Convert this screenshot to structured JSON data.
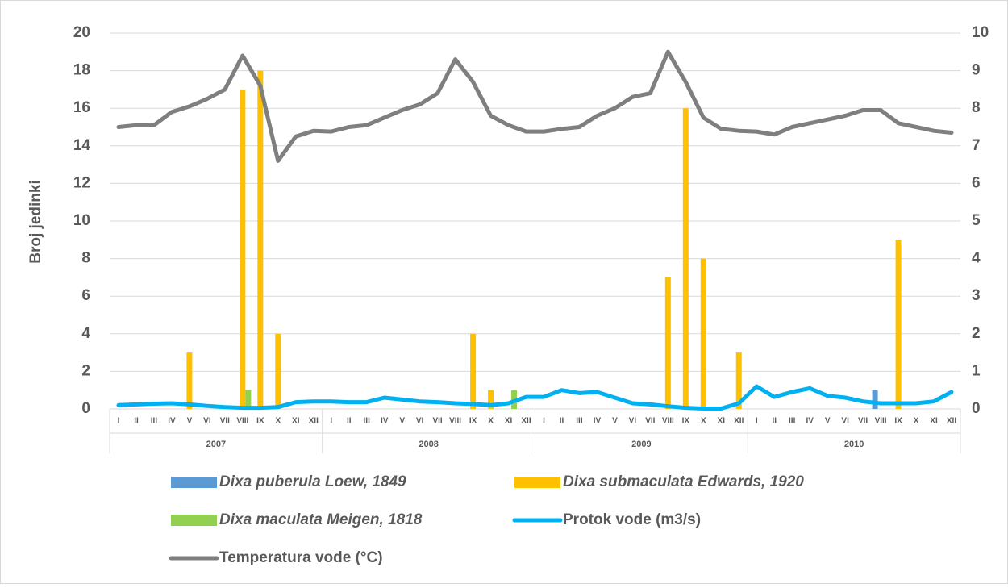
{
  "chart_data": {
    "type": "bar",
    "ylabel": "Broj jedinki",
    "categories": [
      "I",
      "II",
      "III",
      "IV",
      "V",
      "VI",
      "VII",
      "VIII",
      "IX",
      "X",
      "XI",
      "XII",
      "I",
      "II",
      "III",
      "IV",
      "V",
      "VI",
      "VII",
      "VIII",
      "IX",
      "X",
      "XI",
      "XII",
      "I",
      "II",
      "III",
      "IV",
      "V",
      "VI",
      "VII",
      "VIII",
      "IX",
      "X",
      "XI",
      "XII",
      "I",
      "II",
      "III",
      "IV",
      "V",
      "VI",
      "VII",
      "VIII",
      "IX",
      "X",
      "XI",
      "XII"
    ],
    "groups": [
      "2007",
      "2008",
      "2009",
      "2010"
    ],
    "ylim": [
      0,
      20
    ],
    "yticks": [
      0,
      2,
      4,
      6,
      8,
      10,
      12,
      14,
      16,
      18,
      20
    ],
    "y2lim": [
      0,
      10
    ],
    "y2ticks": [
      0,
      1,
      2,
      3,
      4,
      5,
      6,
      7,
      8,
      9,
      10
    ],
    "grid": true,
    "series": [
      {
        "name": "Dixa puberula Loew, 1849",
        "type": "bar",
        "color": "#5b9bd5",
        "italic": true,
        "values": [
          0,
          0,
          0,
          0,
          0,
          0,
          0,
          0,
          0,
          0,
          0,
          0,
          0,
          0,
          0,
          0,
          0,
          0,
          0,
          0,
          0,
          0,
          0,
          0,
          0,
          0,
          0,
          0,
          0,
          0,
          0,
          0,
          0,
          0,
          0,
          0,
          0,
          0,
          0,
          0,
          0,
          0,
          0,
          1,
          0,
          0,
          0,
          0
        ]
      },
      {
        "name": "Dixa submaculata Edwards, 1920",
        "type": "bar",
        "color": "#ffc000",
        "italic": true,
        "values": [
          0,
          0,
          0,
          0,
          3,
          0,
          0,
          17,
          18,
          4,
          0,
          0,
          0,
          0,
          0,
          0,
          0,
          0,
          0,
          0,
          4,
          1,
          0,
          0,
          0,
          0,
          0,
          0,
          0,
          0,
          0,
          7,
          16,
          8,
          0,
          3,
          0,
          0,
          0,
          0,
          0,
          0,
          0,
          0,
          9,
          0,
          0,
          0
        ]
      },
      {
        "name": "Dixa maculata Meigen, 1818",
        "type": "bar",
        "color": "#92d050",
        "italic": true,
        "values": [
          0,
          0,
          0,
          0,
          0,
          0,
          0,
          1,
          0,
          0,
          0,
          0,
          0,
          0,
          0,
          0,
          0,
          0,
          0,
          0,
          0,
          0,
          1,
          0,
          0,
          0,
          0,
          0,
          0,
          0,
          0,
          0,
          0,
          0,
          0,
          0,
          0,
          0,
          0,
          0,
          0,
          0,
          0,
          0,
          0,
          0,
          0,
          0
        ]
      },
      {
        "name": "Protok vode (m3/s)",
        "type": "line",
        "axis": "y2",
        "color": "#00b0f0",
        "italic": false,
        "values": [
          0.1,
          0.12,
          0.14,
          0.15,
          0.12,
          0.08,
          0.05,
          0.03,
          0.03,
          0.05,
          0.18,
          0.2,
          0.2,
          0.18,
          0.18,
          0.3,
          0.25,
          0.2,
          0.18,
          0.15,
          0.13,
          0.1,
          0.15,
          0.32,
          0.32,
          0.5,
          0.42,
          0.45,
          0.3,
          0.15,
          0.12,
          0.07,
          0.03,
          0.01,
          0.01,
          0.15,
          0.6,
          0.32,
          0.45,
          0.55,
          0.35,
          0.3,
          0.2,
          0.15,
          0.15,
          0.15,
          0.2,
          0.45
        ]
      },
      {
        "name": "Temperatura vode (°C)",
        "type": "line",
        "axis": "y2",
        "color": "#7f7f7f",
        "italic": false,
        "values": [
          7.5,
          7.55,
          7.55,
          7.9,
          8.05,
          8.25,
          8.5,
          9.4,
          8.6,
          6.6,
          7.25,
          7.4,
          7.38,
          7.5,
          7.55,
          7.75,
          7.95,
          8.1,
          8.4,
          9.3,
          8.7,
          7.8,
          7.55,
          7.38,
          7.38,
          7.45,
          7.5,
          7.8,
          8.0,
          8.3,
          8.4,
          9.5,
          8.7,
          7.75,
          7.45,
          7.4,
          7.38,
          7.3,
          7.5,
          7.6,
          7.7,
          7.8,
          7.95,
          7.95,
          7.6,
          7.5,
          7.4,
          7.35
        ]
      }
    ]
  }
}
